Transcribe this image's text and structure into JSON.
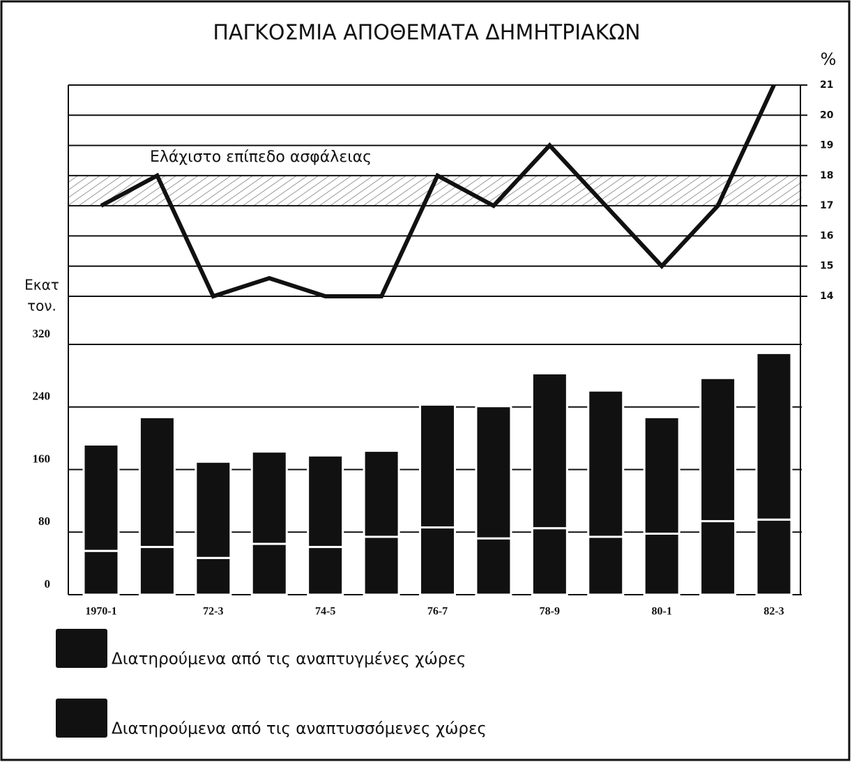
{
  "chart_data": {
    "type": "bar",
    "title": "ΠΑΓΚΟΣΜΙΑ ΑΠΟΘΕΜΑΤΑ ΔΗΜΗΤΡΙΑΚΩΝ",
    "y_label": [
      "Εκατ",
      "τον."
    ],
    "y2_label": "%",
    "categories": [
      "1970-1",
      null,
      "72-3",
      null,
      "74-5",
      null,
      "76-7",
      null,
      "78-9",
      null,
      "80-1",
      null,
      "82-3"
    ],
    "stacked": true,
    "series": [
      {
        "name": "Διατηρούμενα από τις αναπτυγμένες χώρες",
        "color": "#111111",
        "values": [
          136,
          166,
          123,
          118,
          117,
          110,
          157,
          169,
          198,
          187,
          149,
          183,
          213
        ]
      },
      {
        "name": "Διατηρούμενα από τις αναπτυσσόμενες χώρες",
        "color": "#111111",
        "values": [
          56,
          61,
          47,
          65,
          61,
          74,
          86,
          72,
          85,
          74,
          78,
          94,
          96
        ]
      },
      {
        "type": "line",
        "axis": "y2",
        "color": "#111111",
        "values": [
          17,
          18,
          14,
          14.6,
          14,
          14,
          18,
          17,
          19,
          17,
          15,
          17,
          21
        ]
      }
    ],
    "annotation": {
      "text": "Ελάχιστο επίπεδο ασφάλειας",
      "range": [
        17,
        18
      ]
    },
    "ylim": [
      0,
      320
    ],
    "yticks": [
      0,
      80,
      160,
      240,
      320
    ],
    "y2lim": [
      14,
      21
    ],
    "y2ticks": [
      14,
      15,
      16,
      17,
      18,
      19,
      20,
      21
    ],
    "grid": true
  }
}
